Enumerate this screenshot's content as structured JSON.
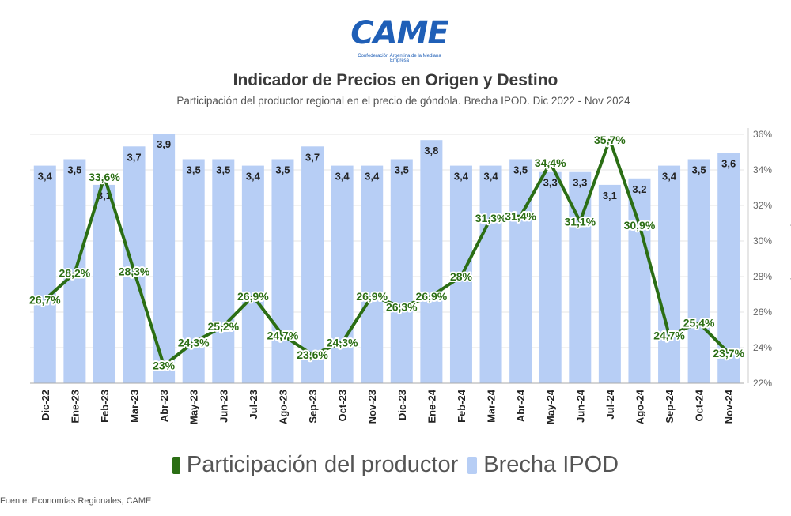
{
  "logo": {
    "word": "CAME",
    "subtitle": "Confederación Argentina de la Mediana Empresa"
  },
  "chart_data": {
    "type": "bar+line",
    "title": "Indicador de Precios en Origen y Destino",
    "subtitle": "Participación del productor regional en el precio de góndola. Brecha IPOD. Dic 2022 - Nov 2024",
    "categories": [
      "Dic-22",
      "Ene-23",
      "Feb-23",
      "Mar-23",
      "Abr-23",
      "May-23",
      "Jun-23",
      "Jul-23",
      "Ago-23",
      "Sep-23",
      "Oct-23",
      "Nov-23",
      "Dic-23",
      "Ene-24",
      "Feb-24",
      "Mar-24",
      "Abr-24",
      "May-24",
      "Jun-24",
      "Jul-24",
      "Ago-24",
      "Sep-24",
      "Oct-24",
      "Nov-24"
    ],
    "series": [
      {
        "name": "Brecha IPOD",
        "type": "bar",
        "color": "#b7cef5",
        "values": [
          3.4,
          3.5,
          3.1,
          3.7,
          3.9,
          3.5,
          3.5,
          3.4,
          3.5,
          3.7,
          3.4,
          3.4,
          3.5,
          3.8,
          3.4,
          3.4,
          3.5,
          3.3,
          3.3,
          3.1,
          3.2,
          3.4,
          3.5,
          3.6
        ],
        "labels": [
          "3,4",
          "3,5",
          "3,1",
          "3,7",
          "3,9",
          "3,5",
          "3,5",
          "3,4",
          "3,5",
          "3,7",
          "3,4",
          "3,4",
          "3,5",
          "3,8",
          "3,4",
          "3,4",
          "3,5",
          "3,3",
          "3,3",
          "3,1",
          "3,2",
          "3,4",
          "3,5",
          "3,6"
        ]
      },
      {
        "name": "Participación del productor",
        "type": "line",
        "color": "#2b6e14",
        "values": [
          26.7,
          28.2,
          33.6,
          28.3,
          23.0,
          24.3,
          25.2,
          26.9,
          24.7,
          23.6,
          24.3,
          26.9,
          26.3,
          26.9,
          28.0,
          31.3,
          31.4,
          34.4,
          31.1,
          35.7,
          30.9,
          24.7,
          25.4,
          23.7
        ],
        "labels": [
          "26,7%",
          "28,2%",
          "33,6%",
          "28,3%",
          "23%",
          "24,3%",
          "25,2%",
          "26,9%",
          "24,7%",
          "23,6%",
          "24,3%",
          "26,9%",
          "26,3%",
          "26,9%",
          "28%",
          "31,3%",
          "31,4%",
          "34,4%",
          "31,1%",
          "35,7%",
          "30,9%",
          "24,7%",
          "25,4%",
          "23,7%"
        ]
      }
    ],
    "y2": {
      "label": "Participación del productor",
      "ylim": [
        22,
        36
      ],
      "ticks": [
        "22%",
        "24%",
        "26%",
        "28%",
        "30%",
        "32%",
        "34%",
        "36%"
      ]
    },
    "legend_position": "bottom-center"
  },
  "legend": {
    "line_label": "Participación del productor",
    "bar_label": "Brecha IPOD"
  },
  "source": "Fuente: Economías Regionales, CAME"
}
